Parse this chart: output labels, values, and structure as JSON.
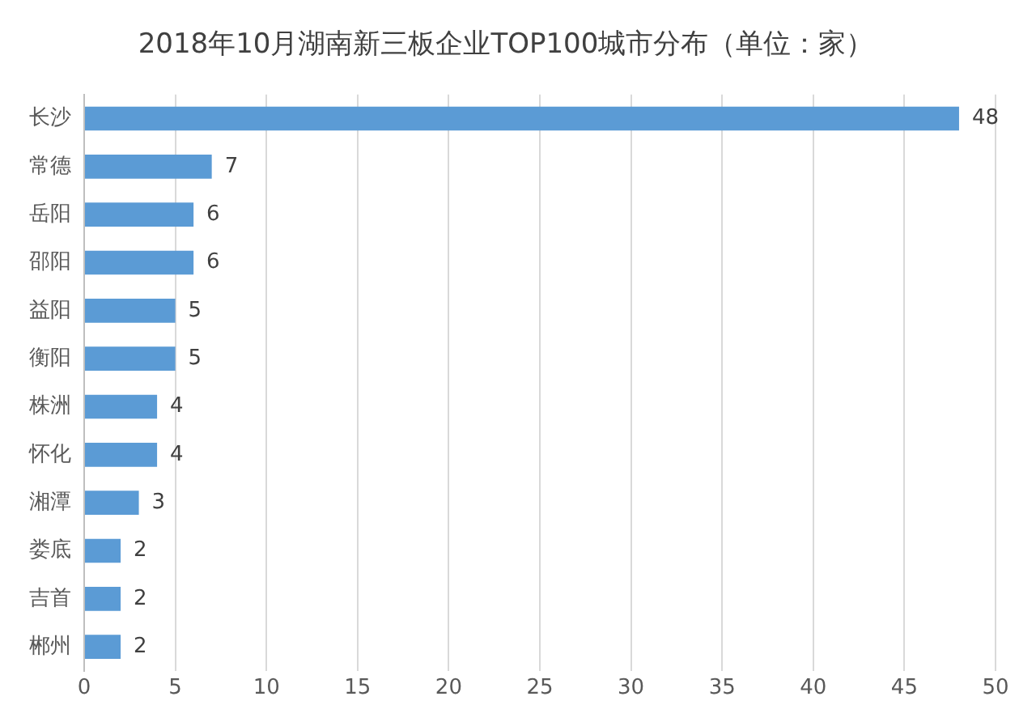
{
  "chart_data": {
    "type": "bar",
    "orientation": "horizontal",
    "title": "2018年10月湖南新三板企业TOP100城市分布（单位：家）",
    "categories": [
      "长沙",
      "常德",
      "岳阳",
      "邵阳",
      "益阳",
      "衡阳",
      "株洲",
      "怀化",
      "湘潭",
      "娄底",
      "吉首",
      "郴州"
    ],
    "values": [
      48,
      7,
      6,
      6,
      5,
      5,
      4,
      4,
      3,
      2,
      2,
      2
    ],
    "color": "#5b9bd5",
    "xlim": [
      0,
      50
    ],
    "xticks": [
      0,
      5,
      10,
      15,
      20,
      25,
      30,
      35,
      40,
      45,
      50
    ],
    "grid": "x",
    "data_labels": true,
    "legend": false
  }
}
